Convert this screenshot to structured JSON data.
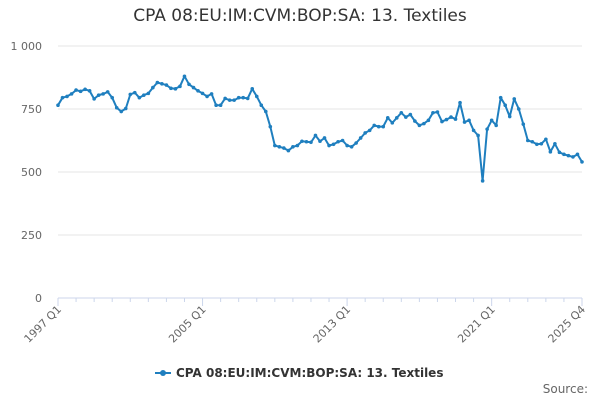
{
  "chart_data": {
    "type": "line",
    "title": "CPA 08:EU:IM:CVM:BOP:SA: 13. Textiles",
    "xlabel": "",
    "ylabel": "",
    "x_tick_labels": [
      "1997 Q1",
      "2005 Q1",
      "2013 Q1",
      "2021 Q1",
      "2025 Q4"
    ],
    "y_tick_labels": [
      "0",
      "250",
      "500",
      "750",
      "1 000"
    ],
    "y_ticks": [
      0,
      250,
      500,
      750,
      1000
    ],
    "ylim": [
      0,
      1000
    ],
    "grid": "horizontal",
    "legend_position": "bottom",
    "color": "#1f7fbf",
    "start_quarter": "1997 Q1",
    "series": [
      {
        "name": "CPA 08:EU:IM:CVM:BOP:SA: 13. Textiles",
        "values": [
          765,
          795,
          800,
          810,
          825,
          820,
          828,
          822,
          790,
          805,
          810,
          818,
          795,
          755,
          740,
          752,
          808,
          815,
          795,
          805,
          812,
          835,
          855,
          850,
          845,
          832,
          830,
          840,
          880,
          848,
          835,
          822,
          812,
          800,
          810,
          765,
          765,
          792,
          785,
          785,
          795,
          795,
          792,
          830,
          800,
          765,
          740,
          680,
          605,
          600,
          595,
          585,
          600,
          605,
          622,
          620,
          618,
          645,
          622,
          635,
          605,
          610,
          620,
          625,
          605,
          600,
          615,
          635,
          655,
          665,
          685,
          680,
          680,
          715,
          695,
          715,
          735,
          718,
          728,
          702,
          685,
          692,
          705,
          735,
          738,
          700,
          708,
          718,
          710,
          775,
          698,
          705,
          665,
          645,
          465,
          670,
          705,
          685,
          795,
          765,
          720,
          790,
          750,
          690,
          625,
          620,
          610,
          612,
          630,
          580,
          612,
          578,
          570,
          565,
          560,
          570,
          540
        ]
      }
    ]
  },
  "legend": {
    "label": "CPA 08:EU:IM:CVM:BOP:SA: 13. Textiles"
  },
  "footer": {
    "source_label": "Source:"
  }
}
